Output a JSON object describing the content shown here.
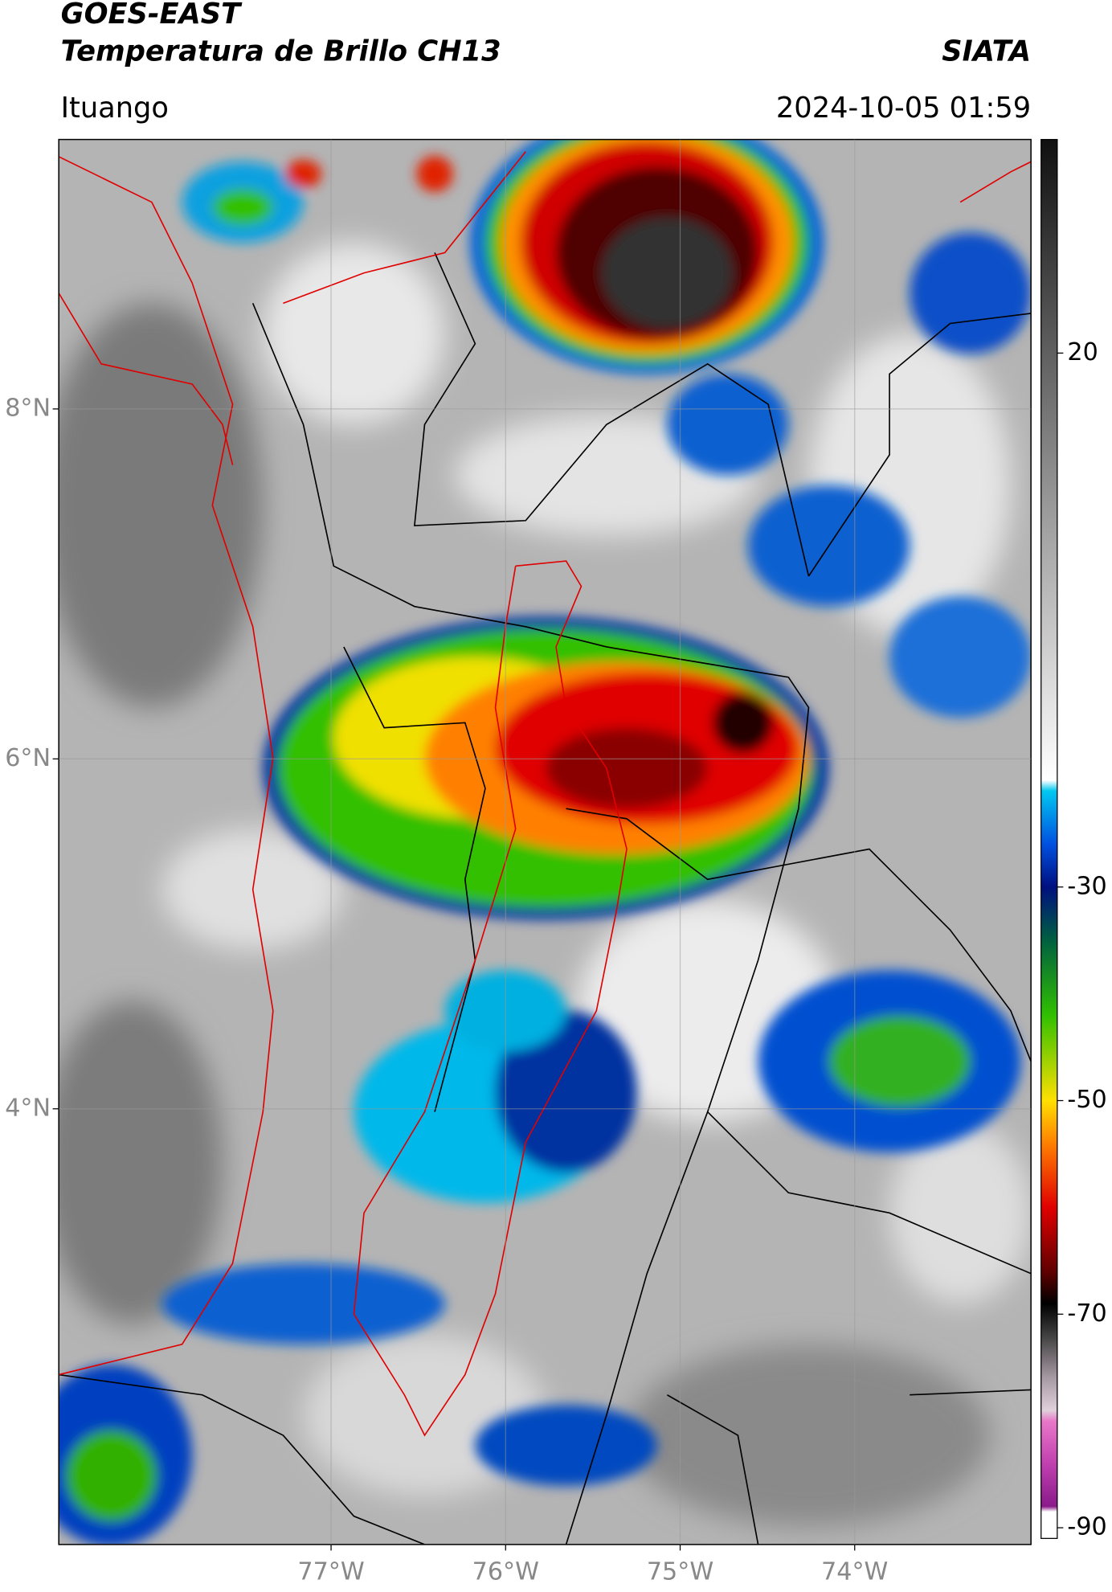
{
  "header": {
    "title": "GOES-EAST",
    "subtitle": "Temperatura de Brillo CH13",
    "source": "SIATA",
    "location": "Ituango",
    "datetime": "2024-10-05 01:59"
  },
  "map": {
    "xlim": [
      -78.56,
      -72.99
    ],
    "ylim": [
      1.51,
      9.54
    ],
    "xticks": [
      {
        "value": -77,
        "label": "77°W"
      },
      {
        "value": -76,
        "label": "76°W"
      },
      {
        "value": -75,
        "label": "75°W"
      },
      {
        "value": -74,
        "label": "74°W"
      }
    ],
    "yticks": [
      {
        "value": 8,
        "label": "8°N"
      },
      {
        "value": 6,
        "label": "6°N"
      },
      {
        "value": 4,
        "label": "4°N"
      }
    ],
    "grid": true
  },
  "colorbar": {
    "lim": [
      -91,
      40
    ],
    "ticks": [
      20,
      -30,
      -50,
      -70,
      -90
    ],
    "stops": [
      {
        "value": -91,
        "color": "#ffffff"
      },
      {
        "value": -88.5,
        "color": "#ffffff"
      },
      {
        "value": -88,
        "color": "#8a1a8a"
      },
      {
        "value": -84,
        "color": "#c040b0"
      },
      {
        "value": -80,
        "color": "#e878c8"
      },
      {
        "value": -79,
        "color": "#e0d0dc"
      },
      {
        "value": -76,
        "color": "#a89aa4"
      },
      {
        "value": -72,
        "color": "#404040"
      },
      {
        "value": -69,
        "color": "#000000"
      },
      {
        "value": -66,
        "color": "#600000"
      },
      {
        "value": -60,
        "color": "#e00000"
      },
      {
        "value": -54,
        "color": "#ff8000"
      },
      {
        "value": -50,
        "color": "#ffe000"
      },
      {
        "value": -42,
        "color": "#30c000"
      },
      {
        "value": -35,
        "color": "#006040"
      },
      {
        "value": -30,
        "color": "#001080"
      },
      {
        "value": -26,
        "color": "#0050e0"
      },
      {
        "value": -21,
        "color": "#00c8f0"
      },
      {
        "value": -20,
        "color": "#ffffff"
      },
      {
        "value": 40,
        "color": "#101010"
      }
    ]
  }
}
